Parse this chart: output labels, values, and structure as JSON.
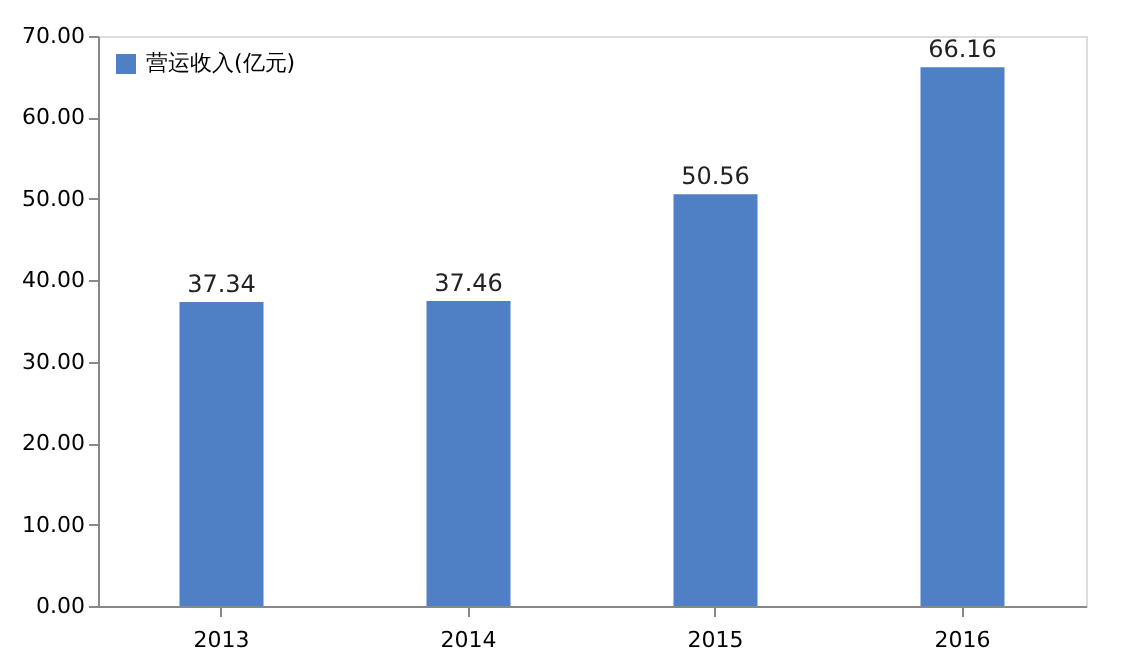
{
  "chart_data": {
    "type": "bar",
    "categories": [
      "2013",
      "2014",
      "2015",
      "2016"
    ],
    "series": [
      {
        "name": "营运收入(亿元)",
        "color": "#4f7fc4",
        "values": [
          37.34,
          37.46,
          50.56,
          66.16
        ]
      }
    ],
    "ylim": [
      0,
      70
    ],
    "yticks": [
      {
        "value": 0,
        "label": "0.00"
      },
      {
        "value": 10,
        "label": "10.00"
      },
      {
        "value": 20,
        "label": "20.00"
      },
      {
        "value": 30,
        "label": "30.00"
      },
      {
        "value": 40,
        "label": "40.00"
      },
      {
        "value": 50,
        "label": "50.00"
      },
      {
        "value": 60,
        "label": "60.00"
      },
      {
        "value": 70,
        "label": "70.00"
      }
    ],
    "data_labels": true,
    "grid": false,
    "legend": "top left"
  }
}
